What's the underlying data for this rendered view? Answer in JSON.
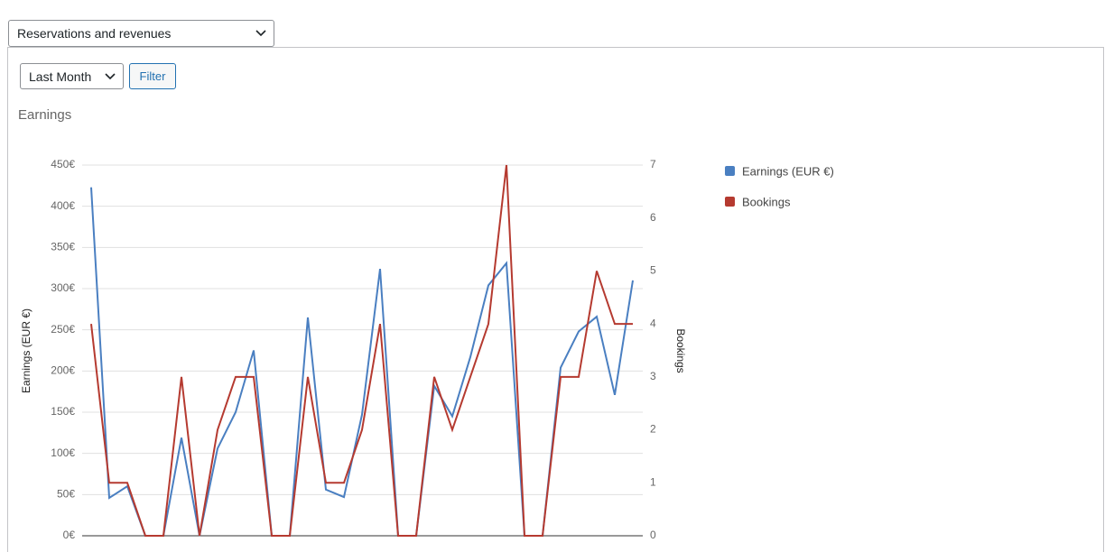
{
  "controls": {
    "report_select": "Reservations and revenues",
    "period_select": "Last Month",
    "filter_button": "Filter"
  },
  "chart_data": {
    "type": "line",
    "title": "Earnings",
    "y_label": "Earnings (EUR €)",
    "y2_label": "Bookings",
    "categories": [
      null,
      null,
      null,
      null,
      null,
      null,
      null,
      null,
      null,
      null,
      null,
      null,
      null,
      null,
      null,
      null,
      null,
      null,
      null,
      null,
      null,
      null,
      null,
      null,
      null,
      null,
      null,
      null,
      null,
      null,
      null
    ],
    "series": [
      {
        "name": "Earnings (EUR €)",
        "color": "#4a7fc1",
        "values": [
          423,
          46,
          60,
          0,
          0,
          119,
          0,
          106,
          150,
          225,
          0,
          0,
          265,
          56,
          47,
          147,
          324,
          0,
          0,
          182,
          145,
          217,
          304,
          331,
          0,
          0,
          204,
          248,
          266,
          171,
          310
        ]
      },
      {
        "name": "Bookings",
        "color": "#b53a30",
        "axis": "y2",
        "values": [
          4,
          1,
          1,
          0,
          0,
          3,
          0,
          2,
          3,
          3,
          0,
          0,
          3,
          1,
          1,
          2,
          4,
          0,
          0,
          3,
          2,
          3,
          4,
          7,
          0,
          0,
          3,
          3,
          5,
          4,
          4
        ]
      }
    ],
    "ylim": [
      0,
      450
    ],
    "yticks": [
      {
        "value": 0,
        "label": "0€"
      },
      {
        "value": 50,
        "label": "50€"
      },
      {
        "value": 100,
        "label": "100€"
      },
      {
        "value": 150,
        "label": "150€"
      },
      {
        "value": 200,
        "label": "200€"
      },
      {
        "value": 250,
        "label": "250€"
      },
      {
        "value": 300,
        "label": "300€"
      },
      {
        "value": 350,
        "label": "350€"
      },
      {
        "value": 400,
        "label": "400€"
      },
      {
        "value": 450,
        "label": "450€"
      }
    ],
    "y2lim": [
      0,
      7
    ],
    "y2ticks": [
      0,
      1,
      2,
      3,
      4,
      5,
      6,
      7
    ],
    "grid": true,
    "legend": "right"
  }
}
